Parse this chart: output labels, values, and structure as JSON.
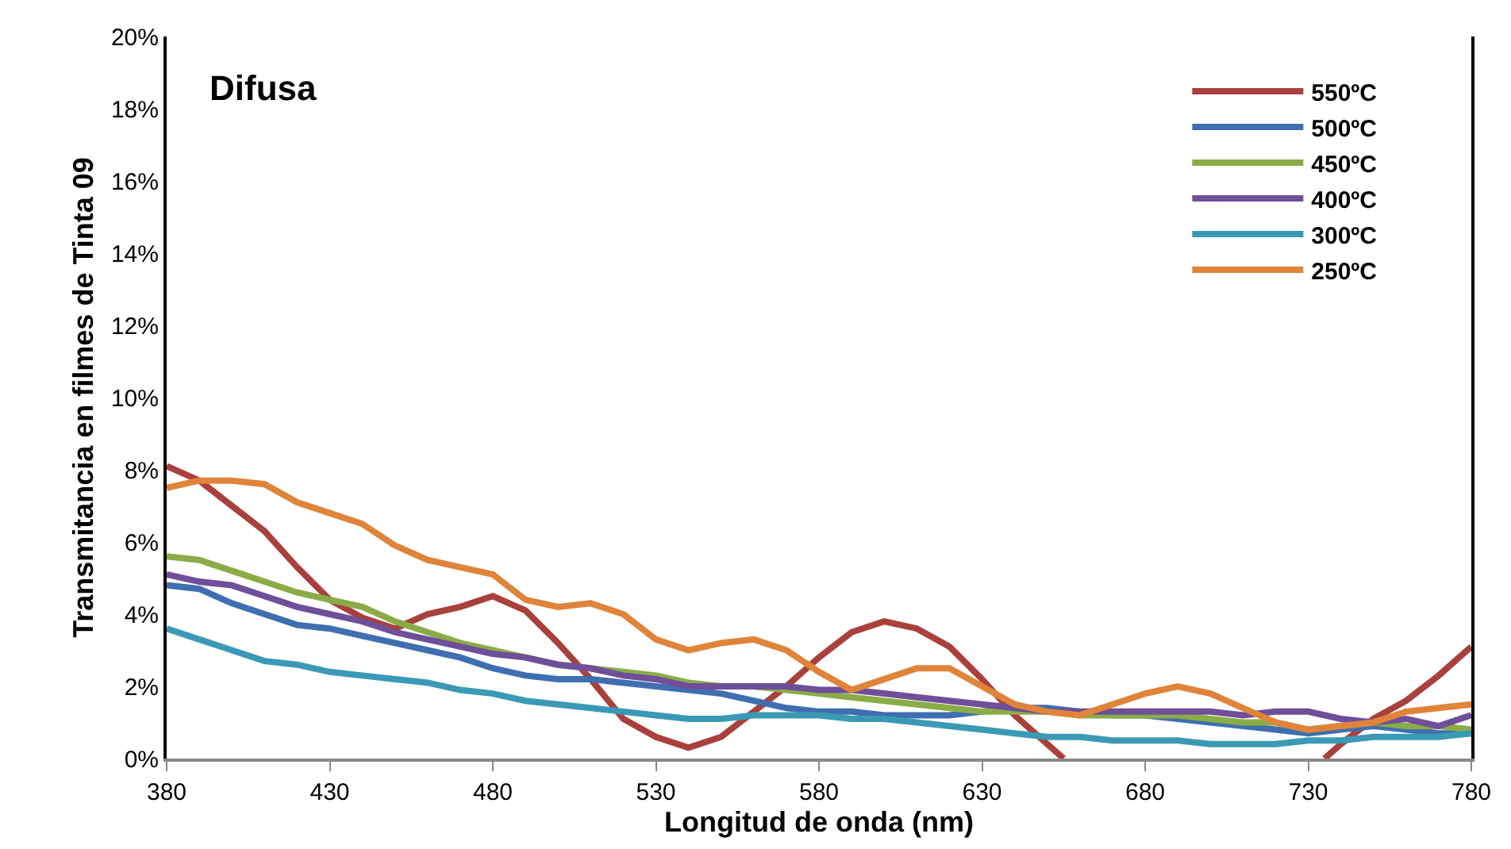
{
  "chart_data": {
    "type": "line",
    "xlabel": "Longitud de onda (nm)",
    "ylabel": "Transmitancia en filmes de Tinta 09",
    "annotations": [
      "Difusa"
    ],
    "x": [
      380,
      390,
      400,
      410,
      420,
      430,
      440,
      450,
      460,
      470,
      480,
      490,
      500,
      510,
      520,
      530,
      540,
      550,
      560,
      570,
      580,
      590,
      600,
      610,
      620,
      630,
      640,
      650,
      660,
      670,
      680,
      690,
      700,
      710,
      720,
      730,
      740,
      750,
      760,
      770,
      780
    ],
    "xlim": [
      380,
      780
    ],
    "xticks": [
      380,
      430,
      480,
      530,
      580,
      630,
      680,
      730,
      780
    ],
    "ylim": [
      0,
      20
    ],
    "yticks": [
      {
        "value": 0,
        "label": "0%"
      },
      {
        "value": 2,
        "label": "2%"
      },
      {
        "value": 4,
        "label": "4%"
      },
      {
        "value": 6,
        "label": "6%"
      },
      {
        "value": 8,
        "label": "8%"
      },
      {
        "value": 10,
        "label": "10%"
      },
      {
        "value": 12,
        "label": "12%"
      },
      {
        "value": 14,
        "label": "14%"
      },
      {
        "value": 16,
        "label": "16%"
      },
      {
        "value": 18,
        "label": "18%"
      },
      {
        "value": 20,
        "label": "20%"
      }
    ],
    "legend": "top right",
    "marker": "none",
    "line_style": "solid",
    "series": [
      {
        "name": "550ºC",
        "color": "#a9403c",
        "x": [
          380,
          390,
          400,
          410,
          420,
          430,
          440,
          450,
          460,
          470,
          480,
          490,
          500,
          510,
          520,
          530,
          540,
          550,
          560,
          570,
          580,
          590,
          600,
          610,
          620,
          630,
          640,
          650,
          655,
          700,
          735,
          740,
          750,
          760,
          770,
          780
        ],
        "values": [
          8.1,
          7.7,
          7.0,
          6.3,
          5.3,
          4.4,
          3.9,
          3.6,
          4.0,
          4.2,
          4.5,
          4.1,
          3.2,
          2.2,
          1.1,
          0.6,
          0.3,
          0.6,
          1.3,
          2.0,
          2.8,
          3.5,
          3.8,
          3.6,
          3.1,
          2.2,
          1.2,
          0.4,
          0,
          null,
          0,
          0.4,
          1.1,
          1.6,
          2.3,
          3.1
        ]
      },
      {
        "name": "500ºC",
        "color": "#3f6fb0",
        "values": [
          4.8,
          4.7,
          4.3,
          4.0,
          3.7,
          3.6,
          3.4,
          3.2,
          3.0,
          2.8,
          2.5,
          2.3,
          2.2,
          2.2,
          2.1,
          2.0,
          1.9,
          1.8,
          1.6,
          1.4,
          1.3,
          1.3,
          1.2,
          1.2,
          1.2,
          1.3,
          1.4,
          1.4,
          1.3,
          1.2,
          1.2,
          1.1,
          1.0,
          0.9,
          0.8,
          0.7,
          0.8,
          0.9,
          0.8,
          0.7,
          0.7
        ]
      },
      {
        "name": "450ºC",
        "color": "#8aac46",
        "values": [
          5.6,
          5.5,
          5.2,
          4.9,
          4.6,
          4.4,
          4.2,
          3.8,
          3.5,
          3.2,
          3.0,
          2.8,
          2.6,
          2.5,
          2.4,
          2.3,
          2.1,
          2.0,
          2.0,
          1.9,
          1.8,
          1.7,
          1.6,
          1.5,
          1.4,
          1.3,
          1.3,
          1.3,
          1.2,
          1.2,
          1.2,
          1.2,
          1.1,
          1.0,
          1.0,
          0.8,
          0.9,
          1.0,
          0.9,
          0.9,
          0.8
        ]
      },
      {
        "name": "400ºC",
        "color": "#6f4f99",
        "values": [
          5.1,
          4.9,
          4.8,
          4.5,
          4.2,
          4.0,
          3.8,
          3.5,
          3.3,
          3.1,
          2.9,
          2.8,
          2.6,
          2.5,
          2.3,
          2.2,
          2.0,
          2.0,
          2.0,
          2.0,
          1.9,
          1.9,
          1.8,
          1.7,
          1.6,
          1.5,
          1.4,
          1.3,
          1.3,
          1.3,
          1.3,
          1.3,
          1.3,
          1.2,
          1.3,
          1.3,
          1.1,
          1.0,
          1.1,
          0.9,
          1.2
        ]
      },
      {
        "name": "300ºC",
        "color": "#3a9ab5",
        "values": [
          3.6,
          3.3,
          3.0,
          2.7,
          2.6,
          2.4,
          2.3,
          2.2,
          2.1,
          1.9,
          1.8,
          1.6,
          1.5,
          1.4,
          1.3,
          1.2,
          1.1,
          1.1,
          1.2,
          1.2,
          1.2,
          1.1,
          1.1,
          1.0,
          0.9,
          0.8,
          0.7,
          0.6,
          0.6,
          0.5,
          0.5,
          0.5,
          0.4,
          0.4,
          0.4,
          0.5,
          0.5,
          0.6,
          0.6,
          0.6,
          0.7
        ]
      },
      {
        "name": "250ºC",
        "color": "#e0843a",
        "values": [
          7.5,
          7.7,
          7.7,
          7.6,
          7.1,
          6.8,
          6.5,
          5.9,
          5.5,
          5.3,
          5.1,
          4.4,
          4.2,
          4.3,
          4.0,
          3.3,
          3.0,
          3.2,
          3.3,
          3.0,
          2.4,
          1.9,
          2.2,
          2.5,
          2.5,
          2.0,
          1.5,
          1.3,
          1.2,
          1.5,
          1.8,
          2.0,
          1.8,
          1.4,
          1.0,
          0.8,
          0.9,
          1.0,
          1.3,
          1.4,
          1.5
        ]
      }
    ]
  }
}
